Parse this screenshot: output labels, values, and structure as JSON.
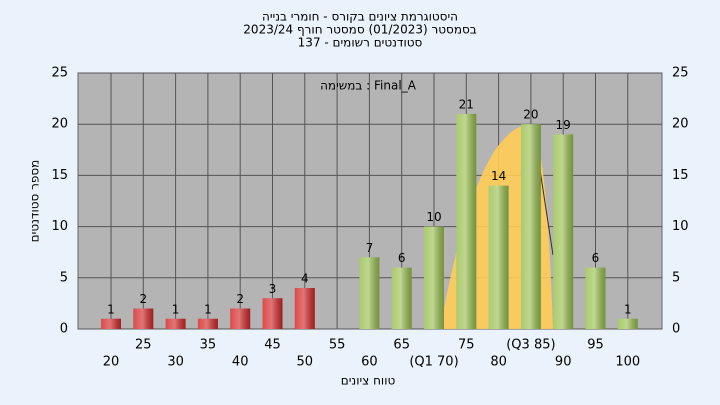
{
  "chart_data": {
    "type": "bar",
    "title": "היסטוגרמת ציונים בקורס - חומרי בנייה",
    "subtitle": "בסמסטר  (01/2023)  סמסטר חורף 2023/24",
    "subtitle2": "סטודנטים רשומים - 137",
    "annotation": "במשימה : Final_A",
    "x_label": "טווח ציונים",
    "y_label": "מספר סטודנטים",
    "categories": [
      "20",
      "25",
      "30",
      "35",
      "40",
      "45",
      "50",
      "55",
      "60",
      "65",
      "(Q1 70)",
      "75",
      "80",
      "(Q3 85)",
      "90",
      "95",
      "100"
    ],
    "values": [
      1,
      2,
      1,
      1,
      2,
      3,
      4,
      null,
      7,
      6,
      10,
      21,
      14,
      20,
      19,
      6,
      1
    ],
    "colors": [
      "#d42a2a",
      "#d42a2a",
      "#d42a2a",
      "#d42a2a",
      "#d42a2a",
      "#d42a2a",
      "#d42a2a",
      "#d42a2a",
      "#9cc153",
      "#9cc153",
      "#9cc153",
      "#9cc153",
      "#9cc153",
      "#9cc153",
      "#9cc153",
      "#9cc153",
      "#9cc153"
    ],
    "ylim": [
      0,
      25
    ],
    "yticks": [
      0,
      5,
      10,
      15,
      20,
      25
    ],
    "grid": true
  }
}
